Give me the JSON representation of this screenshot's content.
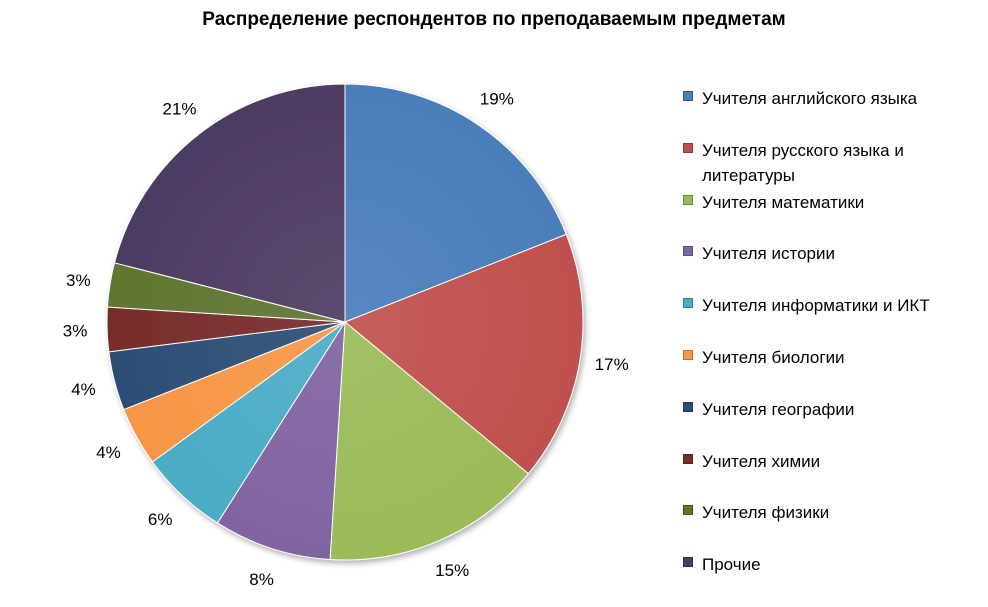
{
  "chart_data": {
    "type": "pie",
    "title": "Распределение респондентов по преподаваемым предметам",
    "legend_position": "right",
    "categories": [
      "Учителя английского языка",
      "Учителя русского языка и литературы",
      "Учителя математики",
      "Учителя истории",
      "Учителя информатики  и ИКТ",
      "Учителя биологии",
      "Учителя географии",
      "Учителя химии",
      "Учителя физики",
      "Прочие"
    ],
    "values": [
      19,
      17,
      15,
      8,
      6,
      4,
      4,
      3,
      3,
      21
    ],
    "data_labels": [
      "19%",
      "17%",
      "15%",
      "8%",
      "6%",
      "4%",
      "4%",
      "3%",
      "3%",
      "21%"
    ],
    "colors": [
      "#4a7ebb",
      "#c0504d",
      "#9bbb59",
      "#8064a2",
      "#4bacc6",
      "#f79646",
      "#2c4d75",
      "#772c2a",
      "#5f7530",
      "#4d3b62"
    ]
  }
}
